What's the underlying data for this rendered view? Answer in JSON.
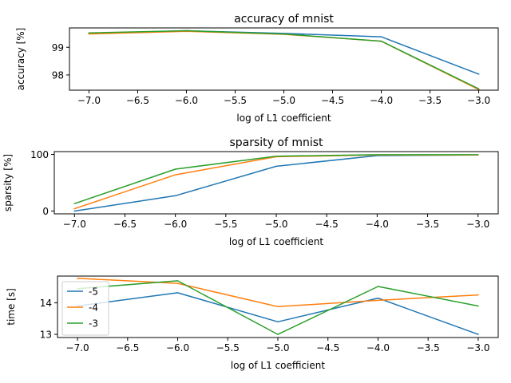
{
  "chart_data": [
    {
      "type": "line",
      "title": "accuracy of mnist",
      "xlabel": "log of L1 coefficient",
      "ylabel": "accuracy [%]",
      "x": [
        -7.0,
        -6.0,
        -5.0,
        -4.0,
        -3.0
      ],
      "xlim": [
        -7.2,
        -2.8
      ],
      "xticks": [
        -7.0,
        -6.5,
        -6.0,
        -5.5,
        -5.0,
        -4.5,
        -4.0,
        -3.5,
        -3.0
      ],
      "xtick_labels": [
        "−7.0",
        "−6.5",
        "−6.0",
        "−5.5",
        "−5.0",
        "−4.5",
        "−4.0",
        "−3.5",
        "−3.0"
      ],
      "ylim": [
        97.45,
        99.7
      ],
      "yticks": [
        98,
        99
      ],
      "ytick_labels": [
        "98",
        "99"
      ],
      "grid": false,
      "series": [
        {
          "name": "-5",
          "color": "#1f77b4",
          "values": [
            99.5,
            99.6,
            99.5,
            99.38,
            98.03
          ]
        },
        {
          "name": "-4",
          "color": "#ff7f0e",
          "values": [
            99.48,
            99.58,
            99.47,
            99.22,
            97.47
          ]
        },
        {
          "name": "-3",
          "color": "#2ca02c",
          "values": [
            99.52,
            99.6,
            99.48,
            99.22,
            97.5
          ]
        }
      ]
    },
    {
      "type": "line",
      "title": "sparsity of mnist",
      "xlabel": "log of L1 coefficient",
      "ylabel": "sparsity [%]",
      "x": [
        -7.0,
        -6.0,
        -5.0,
        -4.0,
        -3.0
      ],
      "xlim": [
        -7.2,
        -2.8
      ],
      "xticks": [
        -7.0,
        -6.5,
        -6.0,
        -5.5,
        -5.0,
        -4.5,
        -4.0,
        -3.5,
        -3.0
      ],
      "xtick_labels": [
        "−7.0",
        "−6.5",
        "−6.0",
        "−5.5",
        "−5.0",
        "−4.5",
        "−4.0",
        "−3.5",
        "−3.0"
      ],
      "ylim": [
        -5,
        105
      ],
      "yticks": [
        0,
        100
      ],
      "ytick_labels": [
        "0",
        "100"
      ],
      "grid": false,
      "series": [
        {
          "name": "-5",
          "color": "#1f77b4",
          "values": [
            0,
            27,
            79,
            98,
            99
          ]
        },
        {
          "name": "-4",
          "color": "#ff7f0e",
          "values": [
            4,
            64,
            96,
            99,
            99
          ]
        },
        {
          "name": "-3",
          "color": "#2ca02c",
          "values": [
            13,
            74,
            97,
            99.5,
            99.5
          ]
        }
      ]
    },
    {
      "type": "line",
      "title": "",
      "xlabel": "log of L1 coefficient",
      "ylabel": "time [s]",
      "x": [
        -7.0,
        -6.0,
        -5.0,
        -4.0,
        -3.0
      ],
      "xlim": [
        -7.2,
        -2.8
      ],
      "xticks": [
        -7.0,
        -6.5,
        -6.0,
        -5.5,
        -5.0,
        -4.5,
        -4.0,
        -3.5,
        -3.0
      ],
      "xtick_labels": [
        "−7.0",
        "−6.5",
        "−6.0",
        "−5.5",
        "−5.0",
        "−4.5",
        "−4.0",
        "−3.5",
        "−3.0"
      ],
      "ylim": [
        12.9,
        14.85
      ],
      "yticks": [
        13,
        14
      ],
      "ytick_labels": [
        "13",
        "14"
      ],
      "grid": false,
      "legend": "upper-left",
      "series": [
        {
          "name": "-5",
          "color": "#1f77b4",
          "values": [
            13.9,
            14.32,
            13.4,
            14.15,
            13.0
          ]
        },
        {
          "name": "-4",
          "color": "#ff7f0e",
          "values": [
            14.78,
            14.62,
            13.88,
            14.08,
            14.25
          ]
        },
        {
          "name": "-3",
          "color": "#2ca02c",
          "values": [
            14.45,
            14.7,
            13.0,
            14.52,
            13.9
          ]
        }
      ]
    }
  ]
}
